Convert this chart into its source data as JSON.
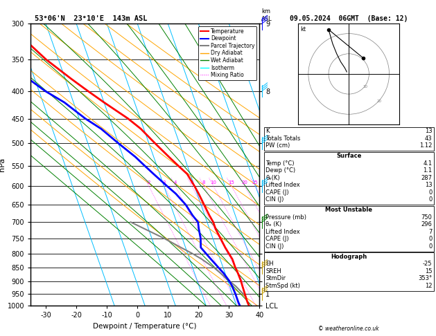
{
  "title_left": "53°06'N  23°10'E  143m ASL",
  "title_right": "09.05.2024  06GMT  (Base: 12)",
  "xlabel": "Dewpoint / Temperature (°C)",
  "ylabel_left": "hPa",
  "pressure_levels": [
    300,
    350,
    400,
    450,
    500,
    550,
    600,
    650,
    700,
    750,
    800,
    850,
    900,
    950,
    1000
  ],
  "temp_xlim": [
    -35,
    40
  ],
  "skew_factor": 32.5,
  "temp_profile": {
    "pressure": [
      300,
      320,
      350,
      380,
      400,
      420,
      450,
      470,
      500,
      530,
      550,
      570,
      600,
      620,
      650,
      680,
      700,
      720,
      750,
      780,
      800,
      820,
      850,
      870,
      900,
      920,
      950,
      970,
      985,
      1000
    ],
    "temp": [
      -43,
      -39,
      -34,
      -28,
      -24,
      -20,
      -14,
      -11,
      -8,
      -5,
      -3,
      -1,
      0,
      0.5,
      1,
      1.5,
      2,
      2,
      2.5,
      3,
      3.5,
      4,
      4,
      4.2,
      4.3,
      4.2,
      4.1,
      4.0,
      4.0,
      4.1
    ]
  },
  "dewp_profile": {
    "pressure": [
      300,
      320,
      350,
      380,
      400,
      420,
      450,
      470,
      500,
      530,
      550,
      570,
      600,
      620,
      650,
      680,
      700,
      720,
      750,
      780,
      800,
      820,
      850,
      870,
      900,
      920,
      950,
      970,
      985,
      1000
    ],
    "dewp": [
      -55,
      -52,
      -47,
      -42,
      -38,
      -33,
      -28,
      -24,
      -20,
      -16,
      -14,
      -12,
      -9,
      -7,
      -5,
      -4,
      -3,
      -3.5,
      -4,
      -5,
      -4,
      -3,
      -1.5,
      -0.5,
      0.5,
      0.8,
      1.0,
      1.0,
      1.0,
      1.1
    ]
  },
  "parcel_profile": {
    "pressure": [
      960,
      950,
      920,
      900,
      870,
      850,
      820,
      800,
      780,
      750,
      700
    ],
    "temp": [
      4.0,
      3.5,
      2,
      0.5,
      -1.5,
      -3,
      -6,
      -8.5,
      -11.5,
      -16,
      -25
    ]
  },
  "isotherms": [
    -40,
    -30,
    -20,
    -10,
    0,
    10,
    20,
    30,
    40
  ],
  "dry_adiabats_theta": [
    280,
    290,
    300,
    310,
    320,
    330,
    340,
    350,
    360,
    370,
    380
  ],
  "wet_start_temps": [
    -10,
    -5,
    0,
    5,
    10,
    15,
    20,
    25,
    30,
    35,
    40
  ],
  "mixing_ratios": [
    2,
    3,
    4,
    6,
    8,
    10,
    15,
    20,
    25
  ],
  "km_pressures": [
    1000,
    950,
    900,
    850,
    800,
    700,
    600,
    500,
    400,
    300
  ],
  "km_labels": [
    "LCL",
    "1",
    "2",
    "3",
    "4",
    "5",
    "6",
    "7",
    "8",
    "9"
  ],
  "wind_barb_data": {
    "pressure": [
      300,
      400,
      500,
      600,
      700,
      850,
      950
    ],
    "colors": [
      "#0000ff",
      "#00bfff",
      "#00bfff",
      "#00bfff",
      "#008000",
      "#c8a000",
      "#c8a000"
    ]
  },
  "colors": {
    "temp": "#ff0000",
    "dewp": "#0000ff",
    "parcel": "#808080",
    "dry_adiabat": "#ffa500",
    "wet_adiabat": "#008000",
    "isotherm": "#00bfff",
    "mixing_ratio": "#ff00ff",
    "background": "#ffffff",
    "grid": "#000000"
  },
  "info_box": {
    "K": 13,
    "Totals_Totals": 43,
    "PW_cm": 1.12,
    "Surface_Temp": 4.1,
    "Surface_Dewp": 1.1,
    "Surface_theta_e": 287,
    "Lifted_Index": 13,
    "CAPE": 0,
    "CIN": 0,
    "MU_Pressure": 750,
    "MU_theta_e": 296,
    "MU_Lifted_Index": 7,
    "MU_CAPE": 0,
    "MU_CIN": 0,
    "EH": -25,
    "SREH": 15,
    "StmDir": 353,
    "StmSpd": 12
  },
  "hodo_trace_u": [
    -1,
    -2,
    -4,
    -6,
    -8,
    -10
  ],
  "hodo_trace_v": [
    1,
    3,
    6,
    10,
    15,
    22
  ],
  "hodo_storm_u": 7,
  "hodo_storm_v": 8
}
